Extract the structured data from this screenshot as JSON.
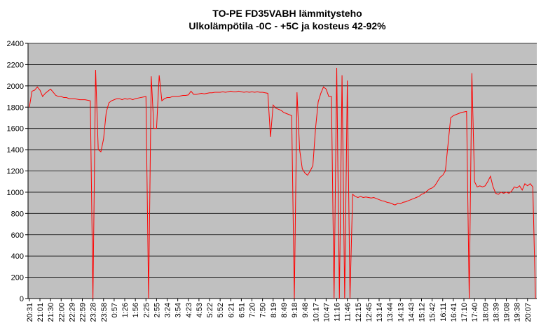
{
  "chart_data": {
    "type": "line",
    "title": "TO-PE FD35VABH lämmitysteho",
    "subtitle": "Ulkolämpötila  -0C - +5C ja kosteus 42-92%",
    "categories": [
      "20:31",
      null,
      null,
      null,
      "21:01",
      null,
      null,
      null,
      "21:30",
      null,
      null,
      null,
      "22:00",
      null,
      null,
      null,
      "22:29",
      null,
      null,
      null,
      "22:59",
      null,
      null,
      null,
      "23:28",
      null,
      null,
      null,
      "23:58",
      null,
      null,
      null,
      "0:57",
      null,
      null,
      null,
      "1:26",
      null,
      null,
      null,
      "1:56",
      null,
      null,
      null,
      "2:25",
      null,
      null,
      null,
      "2:55",
      null,
      null,
      null,
      "3:24",
      null,
      null,
      null,
      "3:54",
      null,
      null,
      null,
      "4:23",
      null,
      null,
      null,
      "4:53",
      null,
      null,
      null,
      "5:22",
      null,
      null,
      null,
      "5:52",
      null,
      null,
      null,
      "6:21",
      null,
      null,
      null,
      "6:51",
      null,
      null,
      null,
      "7:20",
      null,
      null,
      null,
      "7:50",
      null,
      null,
      null,
      "8:19",
      null,
      null,
      null,
      "8:49",
      null,
      null,
      null,
      "9:18",
      null,
      null,
      null,
      "9:48",
      null,
      null,
      null,
      "10:17",
      null,
      null,
      null,
      "10:47",
      null,
      null,
      null,
      "11:16",
      null,
      null,
      null,
      "11:46",
      null,
      null,
      null,
      "12:15",
      null,
      null,
      null,
      "12:45",
      null,
      null,
      null,
      "13:14",
      null,
      null,
      null,
      "13:44",
      null,
      null,
      null,
      "14:13",
      null,
      null,
      null,
      "14:43",
      null,
      null,
      null,
      "15:12",
      null,
      null,
      null,
      "15:42",
      null,
      null,
      null,
      "16:11",
      null,
      null,
      null,
      "16:41",
      null,
      null,
      null,
      "17:10",
      null,
      null,
      null,
      "17:40",
      null,
      null,
      null,
      "18:09",
      null,
      null,
      null,
      "18:39",
      null,
      null,
      null,
      "19:08",
      null,
      null,
      null,
      "19:38",
      null,
      null,
      null,
      "20:07",
      null,
      null,
      null
    ],
    "series": [
      {
        "color": "#ff0000",
        "values": [
          1800,
          1950,
          1960,
          1990,
          1960,
          1900,
          1930,
          1950,
          1970,
          1940,
          1910,
          1900,
          1900,
          1890,
          1890,
          1880,
          1880,
          1880,
          1875,
          1870,
          1870,
          1870,
          1865,
          1860,
          0,
          2150,
          1400,
          1380,
          1500,
          1750,
          1840,
          1860,
          1870,
          1880,
          1880,
          1870,
          1880,
          1875,
          1880,
          1870,
          1880,
          1885,
          1890,
          1895,
          1900,
          0,
          2090,
          1600,
          1600,
          2100,
          1860,
          1880,
          1890,
          1890,
          1900,
          1900,
          1900,
          1905,
          1910,
          1910,
          1915,
          1950,
          1920,
          1920,
          1925,
          1930,
          1925,
          1930,
          1935,
          1935,
          1940,
          1940,
          1940,
          1945,
          1940,
          1945,
          1950,
          1945,
          1945,
          1950,
          1945,
          1940,
          1945,
          1940,
          1945,
          1940,
          1945,
          1940,
          1940,
          1935,
          1930,
          1520,
          1820,
          1790,
          1780,
          1770,
          1750,
          1740,
          1730,
          1720,
          0,
          1940,
          1400,
          1220,
          1180,
          1160,
          1200,
          1250,
          1600,
          1850,
          1930,
          1990,
          1970,
          1900,
          1900,
          0,
          2170,
          0,
          2100,
          0,
          2050,
          0,
          980,
          960,
          950,
          960,
          950,
          955,
          950,
          945,
          950,
          940,
          930,
          920,
          915,
          905,
          900,
          890,
          880,
          895,
          890,
          905,
          910,
          920,
          930,
          940,
          950,
          960,
          980,
          990,
          1010,
          1030,
          1040,
          1060,
          1100,
          1140,
          1160,
          1200,
          1450,
          1700,
          1720,
          1730,
          1740,
          1750,
          1755,
          1760,
          0,
          2120,
          1100,
          1050,
          1060,
          1050,
          1060,
          1100,
          1150,
          1050,
          990,
          980,
          1000,
          990,
          1000,
          990,
          1010,
          1050,
          1040,
          1060,
          1020,
          1080,
          1060,
          1080,
          1050,
          0
        ]
      }
    ],
    "ylim": [
      0,
      2400
    ],
    "yticks": [
      0,
      200,
      400,
      600,
      800,
      1000,
      1200,
      1400,
      1600,
      1800,
      2000,
      2200,
      2400
    ],
    "grid": true
  }
}
